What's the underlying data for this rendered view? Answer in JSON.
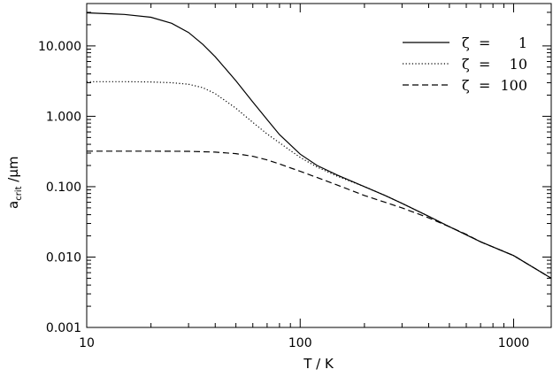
{
  "chart_data": {
    "type": "line",
    "x_scale": "log",
    "y_scale": "log",
    "xlim": [
      10,
      1500
    ],
    "ylim": [
      0.001,
      40
    ],
    "xlabel": "T  /  K",
    "ylabel_main": "a",
    "ylabel_sub": "crit",
    "ylabel_unit": " /μm",
    "x_ticks": [
      {
        "value": 10,
        "label": "10"
      },
      {
        "value": 100,
        "label": "100"
      },
      {
        "value": 1000,
        "label": "1000"
      }
    ],
    "y_ticks": [
      {
        "value": 0.001,
        "label": "0.001"
      },
      {
        "value": 0.01,
        "label": "0.010"
      },
      {
        "value": 0.1,
        "label": "0.100"
      },
      {
        "value": 1,
        "label": "1.000"
      },
      {
        "value": 10,
        "label": "10.000"
      }
    ],
    "legend": {
      "position": "top-right",
      "symbol": "ζ",
      "equals": "=",
      "entries": [
        "1",
        "10",
        "100"
      ]
    },
    "series": [
      {
        "name": "ζ = 1",
        "dash": "solid",
        "x": [
          10,
          15,
          20,
          25,
          30,
          35,
          40,
          50,
          60,
          70,
          80,
          100,
          120,
          150,
          200,
          250,
          300,
          400,
          500,
          700,
          1000,
          1500
        ],
        "y": [
          29.5,
          28.0,
          25.5,
          21.0,
          15.5,
          10.5,
          7.0,
          3.2,
          1.6,
          0.9,
          0.55,
          0.29,
          0.2,
          0.145,
          0.1,
          0.075,
          0.058,
          0.038,
          0.027,
          0.0165,
          0.0105,
          0.005
        ]
      },
      {
        "name": "ζ = 10",
        "dash": "dotted",
        "x": [
          10,
          15,
          20,
          25,
          30,
          35,
          40,
          50,
          60,
          70,
          80,
          100,
          120,
          150,
          200,
          250,
          300,
          400,
          500,
          700,
          1000,
          1500
        ],
        "y": [
          3.1,
          3.1,
          3.08,
          3.0,
          2.85,
          2.55,
          2.1,
          1.3,
          0.82,
          0.56,
          0.42,
          0.26,
          0.19,
          0.14,
          0.1,
          0.075,
          0.058,
          0.038,
          0.027,
          0.0165,
          0.0105,
          0.005
        ]
      },
      {
        "name": "ζ = 100",
        "dash": "dashed",
        "x": [
          10,
          15,
          20,
          30,
          40,
          50,
          60,
          70,
          80,
          100,
          120,
          150,
          200,
          250,
          300,
          400,
          500,
          600,
          700,
          1000,
          1500
        ],
        "y": [
          0.32,
          0.32,
          0.32,
          0.318,
          0.31,
          0.295,
          0.27,
          0.24,
          0.21,
          0.165,
          0.135,
          0.105,
          0.075,
          0.06,
          0.05,
          0.036,
          0.027,
          0.021,
          0.0165,
          0.0105,
          0.005
        ]
      }
    ]
  }
}
